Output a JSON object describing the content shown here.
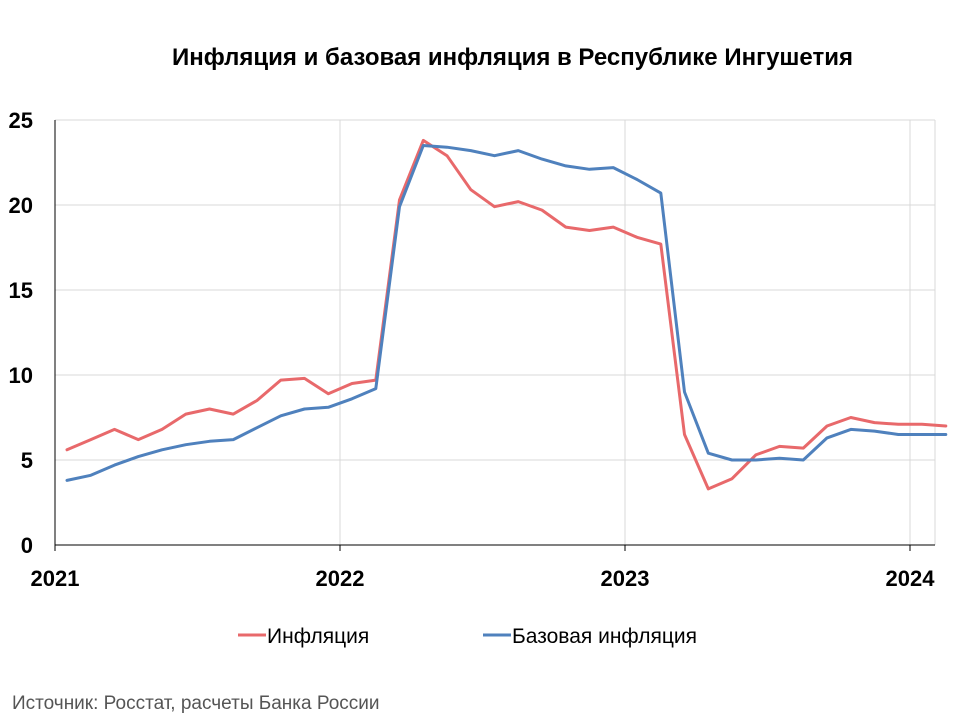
{
  "chart_data": {
    "type": "line",
    "title": "Инфляция и базовая инфляция в Республике Ингушетия",
    "xlabel": "",
    "ylabel": "",
    "x_ticks": [
      "2021",
      "2022",
      "2023",
      "2024"
    ],
    "x_range": [
      "2021-01",
      "2024-02"
    ],
    "ylim": [
      0,
      25
    ],
    "y_ticks": [
      "0",
      "5",
      "10",
      "15",
      "20",
      "25"
    ],
    "grid": true,
    "legend_position": "bottom",
    "x": [
      "2021-01",
      "2021-02",
      "2021-03",
      "2021-04",
      "2021-05",
      "2021-06",
      "2021-07",
      "2021-08",
      "2021-09",
      "2021-10",
      "2021-11",
      "2021-12",
      "2022-01",
      "2022-02",
      "2022-03",
      "2022-04",
      "2022-05",
      "2022-06",
      "2022-07",
      "2022-08",
      "2022-09",
      "2022-10",
      "2022-11",
      "2022-12",
      "2023-01",
      "2023-02",
      "2023-03",
      "2023-04",
      "2023-05",
      "2023-06",
      "2023-07",
      "2023-08",
      "2023-09",
      "2023-10",
      "2023-11",
      "2023-12",
      "2024-01",
      "2024-02"
    ],
    "series": [
      {
        "name": "Инфляция",
        "color": "#e8696b",
        "values": [
          5.6,
          6.2,
          6.8,
          6.2,
          6.8,
          7.7,
          8.0,
          7.7,
          8.5,
          9.7,
          9.8,
          8.9,
          9.5,
          9.7,
          20.3,
          23.8,
          22.9,
          20.9,
          19.9,
          20.2,
          19.7,
          18.7,
          18.5,
          18.7,
          18.1,
          17.7,
          6.5,
          3.3,
          3.9,
          5.3,
          5.8,
          5.7,
          7.0,
          7.5,
          7.2,
          7.1,
          7.1,
          7.0
        ]
      },
      {
        "name": "Базовая инфляция",
        "color": "#4f81bd",
        "values": [
          3.8,
          4.1,
          4.7,
          5.2,
          5.6,
          5.9,
          6.1,
          6.2,
          6.9,
          7.6,
          8.0,
          8.1,
          8.6,
          9.2,
          19.9,
          23.5,
          23.4,
          23.2,
          22.9,
          23.2,
          22.7,
          22.3,
          22.1,
          22.2,
          21.5,
          20.7,
          9.0,
          5.4,
          5.0,
          5.0,
          5.1,
          5.0,
          6.3,
          6.8,
          6.7,
          6.5,
          6.5,
          6.5
        ]
      }
    ]
  },
  "source": "Источник: Росстат, расчеты Банка России"
}
